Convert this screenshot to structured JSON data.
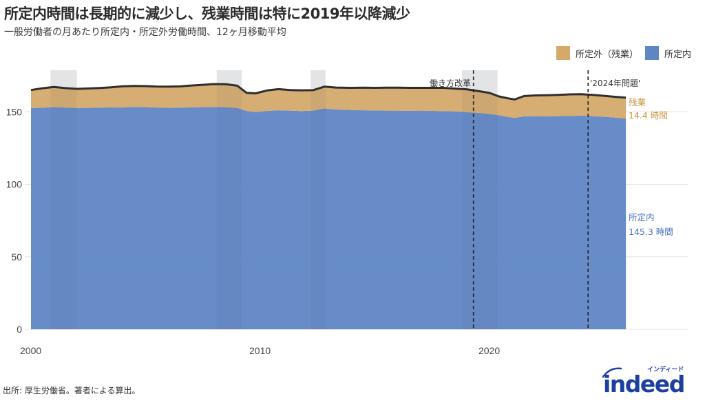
{
  "header": {
    "title": "所定内時間は長期的に減少し、残業時間は特に2019年以降減少",
    "subtitle": "一般労働者の月あたり所定内・所定外労働時間、12ヶ月移動平均"
  },
  "legend": [
    {
      "label": "所定外（残業）",
      "color": "#d4a96a"
    },
    {
      "label": "所定内",
      "color": "#5f86c4"
    }
  ],
  "annotations": {
    "work_style_reform": "働き方改革",
    "problem_2024": "'2024年問題'",
    "overtime_label": "残業",
    "overtime_value": "14.4 時間",
    "scheduled_label": "所定内",
    "scheduled_value": "145.3 時間"
  },
  "footer": {
    "source": "出所: 厚生労働省。著者による算出。",
    "logo_text": "indeed",
    "logo_kana": "インディード"
  },
  "colors": {
    "overtime": "#d4a96a",
    "scheduled": "#6388c2",
    "total_line": "#2e2e2e",
    "recession_shade": "#e6e6e6",
    "overtime_text": "#c8913f",
    "scheduled_text": "#4a72b8",
    "logo": "#1c3fa0"
  },
  "chart_data": {
    "type": "area",
    "title": "所定内時間は長期的に減少し、残業時間は特に2019年以降減少",
    "subtitle": "一般労働者の月あたり所定内・所定外労働時間、12ヶ月移動平均",
    "xlabel": "",
    "ylabel": "",
    "stacked": true,
    "x_ticks": [
      2000,
      2010,
      2020
    ],
    "y_ticks": [
      0,
      50,
      100,
      150
    ],
    "xlim": [
      2000,
      2028
    ],
    "ylim": [
      0,
      175
    ],
    "grid": "horizontal",
    "legend_position": "top-right",
    "x": [
      2000.0,
      2000.5,
      2001.0,
      2001.5,
      2002.0,
      2002.5,
      2003.0,
      2003.5,
      2004.0,
      2004.5,
      2005.0,
      2005.5,
      2006.0,
      2006.5,
      2007.0,
      2007.5,
      2008.0,
      2008.5,
      2009.0,
      2009.4,
      2009.8,
      2010.3,
      2010.8,
      2011.3,
      2011.8,
      2012.3,
      2012.8,
      2013.3,
      2014.0,
      2014.5,
      2015.0,
      2015.5,
      2016.0,
      2016.5,
      2017.0,
      2017.5,
      2018.0,
      2018.5,
      2019.0,
      2019.5,
      2020.0,
      2020.4,
      2020.8,
      2021.1,
      2021.5,
      2022.0,
      2022.5,
      2023.0,
      2023.5,
      2024.0,
      2024.5,
      2025.0,
      2025.5,
      2025.95
    ],
    "series": [
      {
        "name": "所定内",
        "values": [
          152.5,
          152.8,
          153.2,
          152.9,
          152.6,
          152.7,
          152.8,
          153.0,
          153.0,
          153.4,
          153.2,
          152.9,
          152.7,
          152.8,
          153.0,
          153.2,
          153.3,
          153.2,
          152.6,
          150.6,
          149.8,
          150.6,
          151.0,
          150.8,
          150.5,
          150.8,
          152.3,
          151.6,
          151.2,
          151.0,
          150.9,
          150.8,
          150.8,
          150.7,
          150.8,
          150.6,
          150.5,
          150.2,
          149.8,
          149.2,
          148.5,
          147.6,
          146.5,
          145.8,
          146.8,
          147.0,
          146.9,
          147.0,
          147.1,
          147.3,
          147.0,
          146.5,
          146.0,
          145.3
        ]
      },
      {
        "name": "所定外（残業）",
        "values": [
          12.5,
          13.4,
          13.9,
          13.4,
          13.2,
          13.4,
          13.6,
          13.9,
          14.6,
          14.4,
          14.5,
          14.5,
          14.6,
          14.7,
          15.1,
          15.4,
          15.8,
          15.8,
          15.4,
          12.5,
          12.9,
          14.1,
          14.6,
          14.2,
          14.3,
          14.1,
          15.0,
          15.1,
          15.3,
          15.6,
          15.6,
          15.8,
          15.8,
          15.8,
          15.7,
          15.9,
          16.0,
          15.8,
          15.7,
          15.1,
          14.5,
          13.0,
          12.8,
          12.7,
          14.0,
          14.3,
          14.5,
          14.6,
          14.9,
          14.8,
          14.6,
          14.5,
          14.3,
          14.4
        ]
      },
      {
        "name": "合計",
        "values": [
          165.0,
          166.2,
          167.1,
          166.3,
          165.8,
          166.1,
          166.4,
          166.9,
          167.6,
          167.8,
          167.7,
          167.4,
          167.3,
          167.5,
          168.1,
          168.6,
          169.1,
          169.0,
          168.0,
          163.1,
          162.7,
          164.7,
          165.6,
          165.0,
          164.8,
          164.9,
          167.3,
          166.7,
          166.5,
          166.6,
          166.5,
          166.6,
          166.6,
          166.5,
          166.5,
          166.5,
          166.5,
          166.0,
          165.5,
          164.3,
          163.0,
          160.6,
          159.3,
          158.5,
          160.8,
          161.3,
          161.4,
          161.6,
          162.0,
          162.1,
          161.6,
          161.0,
          160.3,
          159.7
        ]
      }
    ],
    "shaded_periods": [
      [
        2000.85,
        2002.0
      ],
      [
        2008.1,
        2009.2
      ],
      [
        2012.2,
        2012.85
      ],
      [
        2018.8,
        2020.35
      ]
    ],
    "vlines": [
      {
        "x": 2019.3,
        "label": "働き方改革",
        "style": "dashed"
      },
      {
        "x": 2024.3,
        "label": "'2024年問題'",
        "style": "dashed"
      }
    ],
    "end_labels": [
      {
        "series": "所定外（残業）",
        "text": "残業 14.4 時間"
      },
      {
        "series": "所定内",
        "text": "所定内 145.3 時間"
      }
    ]
  }
}
